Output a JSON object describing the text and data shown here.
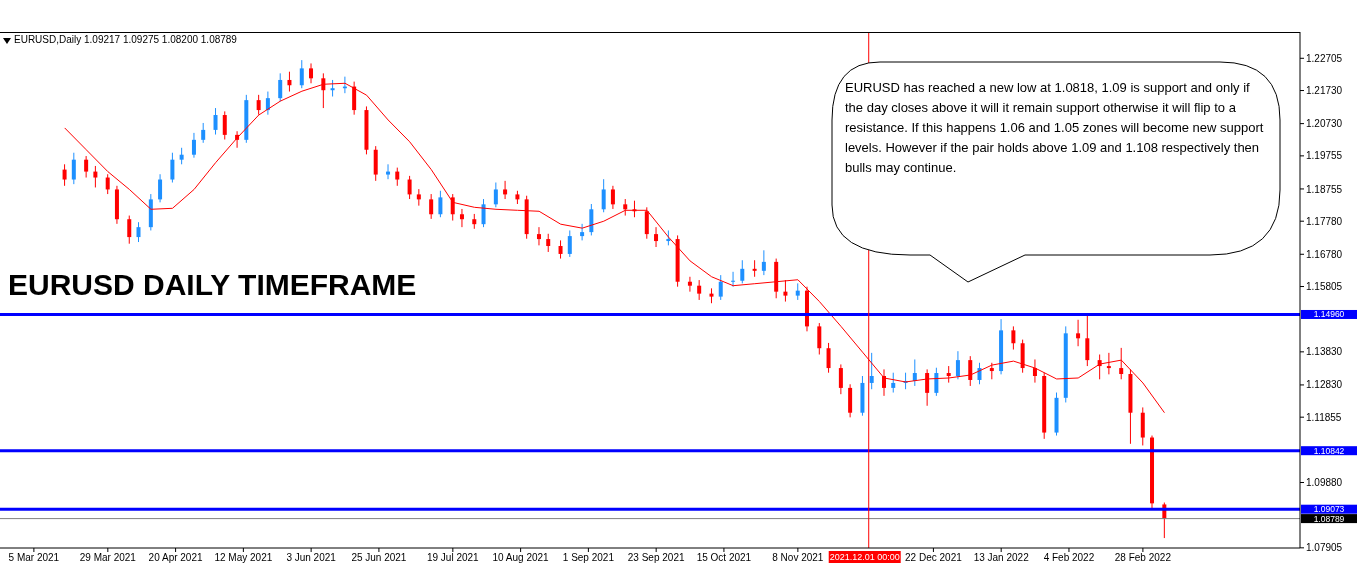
{
  "chart_data": {
    "type": "candlestick",
    "title": "EURUSD DAILY TIMEFRAME",
    "subtitle": "EURUSD,Daily 1.09217 1.09275 1.08200 1.08789",
    "annotations": [
      "EURUSD has reached a new low at 1.0818, 1.09 is support and only if the day closes above it will it remain support otherwise it will flip to a resistance. If this happens 1.06 and 1.05 zones will become new support levels. However if the pair holds above 1.09 and 1.108 respectively then bulls may continue."
    ],
    "x": [
      "2021-03-15",
      "2021-03-18",
      "2021-03-22",
      "2021-03-25",
      "2021-03-29",
      "2021-04-01",
      "2021-04-05",
      "2021-04-08",
      "2021-04-12",
      "2021-04-15",
      "2021-04-19",
      "2021-04-22",
      "2021-04-26",
      "2021-04-29",
      "2021-05-03",
      "2021-05-06",
      "2021-05-10",
      "2021-05-13",
      "2021-05-17",
      "2021-05-20",
      "2021-05-24",
      "2021-05-27",
      "2021-05-31",
      "2021-06-03",
      "2021-06-07",
      "2021-06-10",
      "2021-06-14",
      "2021-06-17",
      "2021-06-21",
      "2021-06-24",
      "2021-06-28",
      "2021-07-01",
      "2021-07-05",
      "2021-07-08",
      "2021-07-12",
      "2021-07-15",
      "2021-07-19",
      "2021-07-22",
      "2021-07-26",
      "2021-07-29",
      "2021-08-02",
      "2021-08-05",
      "2021-08-09",
      "2021-08-12",
      "2021-08-16",
      "2021-08-19",
      "2021-08-23",
      "2021-08-26",
      "2021-08-30",
      "2021-09-02",
      "2021-09-06",
      "2021-09-09",
      "2021-09-13",
      "2021-09-16",
      "2021-09-20",
      "2021-09-23",
      "2021-09-27",
      "2021-09-30",
      "2021-10-04",
      "2021-10-07",
      "2021-10-11",
      "2021-10-14",
      "2021-10-18",
      "2021-10-21",
      "2021-10-25",
      "2021-10-28",
      "2021-11-01",
      "2021-11-04",
      "2021-11-08",
      "2021-11-11",
      "2021-11-15",
      "2021-11-18",
      "2021-11-22",
      "2021-11-25",
      "2021-11-29",
      "2021-12-02",
      "2021-12-06",
      "2021-12-09",
      "2021-12-13",
      "2021-12-16",
      "2021-12-20",
      "2021-12-23",
      "2021-12-27",
      "2021-12-30",
      "2022-01-03",
      "2022-01-06",
      "2022-01-10",
      "2022-01-13",
      "2022-01-17",
      "2022-01-20",
      "2022-01-24",
      "2022-01-27",
      "2022-01-31",
      "2022-02-03",
      "2022-02-07",
      "2022-02-10",
      "2022-02-14",
      "2022-02-17",
      "2022-02-21",
      "2022-02-24",
      "2022-02-28",
      "2022-03-03",
      "2022-03-07"
    ],
    "ohlc": [
      [
        1.1934,
        1.195,
        1.1885,
        1.1904
      ],
      [
        1.1904,
        1.1985,
        1.189,
        1.1964
      ],
      [
        1.1964,
        1.1975,
        1.191,
        1.1928
      ],
      [
        1.1928,
        1.1945,
        1.188,
        1.191
      ],
      [
        1.191,
        1.192,
        1.186,
        1.1874
      ],
      [
        1.1874,
        1.1885,
        1.177,
        1.1784
      ],
      [
        1.1784,
        1.1795,
        1.171,
        1.173
      ],
      [
        1.173,
        1.1775,
        1.1715,
        1.176
      ],
      [
        1.176,
        1.186,
        1.175,
        1.1844
      ],
      [
        1.1844,
        1.192,
        1.1835,
        1.1904
      ],
      [
        1.1904,
        1.1985,
        1.1895,
        1.1964
      ],
      [
        1.1964,
        1.2,
        1.195,
        1.1979
      ],
      [
        1.1979,
        1.2045,
        1.197,
        1.2024
      ],
      [
        1.2024,
        1.2075,
        1.2015,
        1.2054
      ],
      [
        1.2054,
        1.212,
        1.204,
        1.2099
      ],
      [
        1.2099,
        1.211,
        1.2025,
        1.2039
      ],
      [
        1.2039,
        1.205,
        1.2,
        1.2024
      ],
      [
        1.2024,
        1.216,
        1.2015,
        1.2144
      ],
      [
        1.2144,
        1.216,
        1.21,
        1.2114
      ],
      [
        1.2114,
        1.217,
        1.21,
        1.215
      ],
      [
        1.215,
        1.2225,
        1.214,
        1.2205
      ],
      [
        1.2205,
        1.223,
        1.217,
        1.2189
      ],
      [
        1.2189,
        1.2265,
        1.218,
        1.224
      ],
      [
        1.224,
        1.2255,
        1.2195,
        1.221
      ],
      [
        1.221,
        1.2225,
        1.212,
        1.2174
      ],
      [
        1.2174,
        1.2205,
        1.2155,
        1.218
      ],
      [
        1.218,
        1.2215,
        1.2165,
        1.2185
      ],
      [
        1.2185,
        1.22,
        1.21,
        1.2114
      ],
      [
        1.2114,
        1.2125,
        1.198,
        1.1994
      ],
      [
        1.1994,
        1.2005,
        1.19,
        1.1919
      ],
      [
        1.1919,
        1.195,
        1.1905,
        1.1928
      ],
      [
        1.1928,
        1.194,
        1.1885,
        1.1904
      ],
      [
        1.1904,
        1.1915,
        1.1845,
        1.1859
      ],
      [
        1.1859,
        1.1875,
        1.1825,
        1.1844
      ],
      [
        1.1844,
        1.186,
        1.1785,
        1.1799
      ],
      [
        1.1799,
        1.187,
        1.179,
        1.185
      ],
      [
        1.185,
        1.186,
        1.178,
        1.1799
      ],
      [
        1.1799,
        1.1815,
        1.176,
        1.1784
      ],
      [
        1.1784,
        1.18,
        1.1755,
        1.1769
      ],
      [
        1.1769,
        1.1845,
        1.176,
        1.1829
      ],
      [
        1.1829,
        1.1895,
        1.182,
        1.1874
      ],
      [
        1.1874,
        1.19,
        1.1845,
        1.1859
      ],
      [
        1.1859,
        1.187,
        1.183,
        1.1844
      ],
      [
        1.1844,
        1.1855,
        1.1725,
        1.1739
      ],
      [
        1.1739,
        1.176,
        1.1705,
        1.1724
      ],
      [
        1.1724,
        1.174,
        1.1685,
        1.1703
      ],
      [
        1.1703,
        1.172,
        1.1665,
        1.1679
      ],
      [
        1.1679,
        1.175,
        1.167,
        1.1733
      ],
      [
        1.1733,
        1.177,
        1.172,
        1.1745
      ],
      [
        1.1745,
        1.183,
        1.1735,
        1.1814
      ],
      [
        1.1814,
        1.1905,
        1.1805,
        1.1874
      ],
      [
        1.1874,
        1.1885,
        1.1815,
        1.1829
      ],
      [
        1.1829,
        1.1845,
        1.1795,
        1.1814
      ],
      [
        1.1814,
        1.184,
        1.179,
        1.1808
      ],
      [
        1.1808,
        1.182,
        1.1725,
        1.1739
      ],
      [
        1.1739,
        1.176,
        1.17,
        1.1718
      ],
      [
        1.1718,
        1.175,
        1.1705,
        1.1724
      ],
      [
        1.1724,
        1.1735,
        1.158,
        1.1595
      ],
      [
        1.1595,
        1.161,
        1.1565,
        1.1583
      ],
      [
        1.1583,
        1.16,
        1.154,
        1.1559
      ],
      [
        1.1559,
        1.1575,
        1.153,
        1.155
      ],
      [
        1.155,
        1.1615,
        1.154,
        1.1595
      ],
      [
        1.1595,
        1.1625,
        1.158,
        1.1598
      ],
      [
        1.1598,
        1.166,
        1.159,
        1.1634
      ],
      [
        1.1634,
        1.166,
        1.161,
        1.1628
      ],
      [
        1.1628,
        1.169,
        1.1615,
        1.1655
      ],
      [
        1.1655,
        1.1665,
        1.1545,
        1.1565
      ],
      [
        1.1565,
        1.16,
        1.1535,
        1.1553
      ],
      [
        1.1553,
        1.159,
        1.154,
        1.1568
      ],
      [
        1.1568,
        1.158,
        1.1445,
        1.146
      ],
      [
        1.146,
        1.147,
        1.1375,
        1.1394
      ],
      [
        1.1394,
        1.141,
        1.132,
        1.1334
      ],
      [
        1.1334,
        1.1345,
        1.1255,
        1.1274
      ],
      [
        1.1274,
        1.1285,
        1.1185,
        1.1199
      ],
      [
        1.1199,
        1.131,
        1.119,
        1.1289
      ],
      [
        1.1289,
        1.138,
        1.127,
        1.131
      ],
      [
        1.131,
        1.133,
        1.125,
        1.1274
      ],
      [
        1.1274,
        1.132,
        1.126,
        1.1289
      ],
      [
        1.1289,
        1.132,
        1.127,
        1.1295
      ],
      [
        1.1295,
        1.136,
        1.128,
        1.1319
      ],
      [
        1.1319,
        1.133,
        1.122,
        1.1259
      ],
      [
        1.1259,
        1.1335,
        1.125,
        1.1319
      ],
      [
        1.1319,
        1.134,
        1.129,
        1.131
      ],
      [
        1.131,
        1.1385,
        1.13,
        1.1358
      ],
      [
        1.1358,
        1.137,
        1.128,
        1.1298
      ],
      [
        1.1298,
        1.135,
        1.1285,
        1.1334
      ],
      [
        1.1334,
        1.135,
        1.13,
        1.1325
      ],
      [
        1.1325,
        1.1482,
        1.1315,
        1.1448
      ],
      [
        1.1448,
        1.146,
        1.139,
        1.1409
      ],
      [
        1.1409,
        1.142,
        1.132,
        1.1334
      ],
      [
        1.1334,
        1.136,
        1.129,
        1.131
      ],
      [
        1.131,
        1.132,
        1.112,
        1.1139
      ],
      [
        1.1139,
        1.126,
        1.113,
        1.1244
      ],
      [
        1.1244,
        1.146,
        1.123,
        1.1439
      ],
      [
        1.1439,
        1.148,
        1.14,
        1.1424
      ],
      [
        1.1424,
        1.1495,
        1.134,
        1.1358
      ],
      [
        1.1358,
        1.1375,
        1.13,
        1.134
      ],
      [
        1.134,
        1.138,
        1.1315,
        1.1334
      ],
      [
        1.1334,
        1.1395,
        1.13,
        1.1316
      ],
      [
        1.1316,
        1.133,
        1.1105,
        1.1199
      ],
      [
        1.1199,
        1.1215,
        1.11,
        1.1124
      ],
      [
        1.1124,
        1.113,
        1.091,
        1.0925
      ],
      [
        1.09217,
        1.09275,
        1.082,
        1.08789
      ]
    ],
    "colors": [
      "#ff0000",
      "#1e90ff",
      "#ff0000",
      "#ff0000",
      "#ff0000",
      "#ff0000",
      "#ff0000",
      "#1e90ff",
      "#1e90ff",
      "#1e90ff",
      "#1e90ff",
      "#1e90ff",
      "#1e90ff",
      "#1e90ff",
      "#1e90ff",
      "#ff0000",
      "#ff0000",
      "#1e90ff",
      "#ff0000",
      "#1e90ff",
      "#1e90ff",
      "#ff0000",
      "#1e90ff",
      "#ff0000",
      "#ff0000",
      "#1e90ff",
      "#1e90ff",
      "#ff0000",
      "#ff0000",
      "#ff0000",
      "#1e90ff",
      "#ff0000",
      "#ff0000",
      "#ff0000",
      "#ff0000",
      "#1e90ff",
      "#ff0000",
      "#ff0000",
      "#ff0000",
      "#1e90ff",
      "#1e90ff",
      "#ff0000",
      "#ff0000",
      "#ff0000",
      "#ff0000",
      "#ff0000",
      "#ff0000",
      "#1e90ff",
      "#1e90ff",
      "#1e90ff",
      "#1e90ff",
      "#ff0000",
      "#ff0000",
      "#ff0000",
      "#ff0000",
      "#ff0000",
      "#1e90ff",
      "#ff0000",
      "#ff0000",
      "#ff0000",
      "#ff0000",
      "#1e90ff",
      "#1e90ff",
      "#1e90ff",
      "#ff0000",
      "#1e90ff",
      "#ff0000",
      "#ff0000",
      "#1e90ff",
      "#ff0000",
      "#ff0000",
      "#ff0000",
      "#ff0000",
      "#ff0000",
      "#1e90ff",
      "#1e90ff",
      "#ff0000",
      "#1e90ff",
      "#1e90ff",
      "#1e90ff",
      "#ff0000",
      "#1e90ff",
      "#ff0000",
      "#1e90ff",
      "#ff0000",
      "#1e90ff",
      "#ff0000",
      "#1e90ff",
      "#ff0000",
      "#ff0000",
      "#ff0000",
      "#ff0000",
      "#1e90ff",
      "#1e90ff",
      "#ff0000",
      "#ff0000",
      "#ff0000",
      "#ff0000",
      "#ff0000",
      "#ff0000",
      "#ff0000",
      "#ff0000",
      "#ff0000"
    ],
    "series": [
      {
        "type": "line",
        "color": "#ff0000",
        "x": [
          "2021-03-15",
          "2021-03-22",
          "2021-03-29",
          "2021-04-05",
          "2021-04-12",
          "2021-04-19",
          "2021-04-26",
          "2021-05-03",
          "2021-05-10",
          "2021-05-17",
          "2021-05-24",
          "2021-05-31",
          "2021-06-07",
          "2021-06-14",
          "2021-06-21",
          "2021-06-28",
          "2021-07-05",
          "2021-07-12",
          "2021-07-19",
          "2021-07-26",
          "2021-08-02",
          "2021-08-09",
          "2021-08-16",
          "2021-08-23",
          "2021-08-30",
          "2021-09-06",
          "2021-09-13",
          "2021-09-20",
          "2021-09-27",
          "2021-10-04",
          "2021-10-11",
          "2021-10-18",
          "2021-10-25",
          "2021-11-01",
          "2021-11-08",
          "2021-11-15",
          "2021-11-22",
          "2021-11-29",
          "2021-12-06",
          "2021-12-13",
          "2021-12-20",
          "2021-12-27",
          "2022-01-03",
          "2022-01-10",
          "2022-01-17",
          "2022-01-24",
          "2022-01-31",
          "2022-02-07",
          "2022-02-14",
          "2022-02-21",
          "2022-02-28",
          "2022-03-07"
        ],
        "values": [
          1.206,
          1.1994,
          1.1928,
          1.1874,
          1.1814,
          1.1817,
          1.1874,
          1.1955,
          1.203,
          1.2099,
          1.2141,
          1.2171,
          1.2192,
          1.2195,
          1.2159,
          1.2084,
          1.2018,
          1.1934,
          1.1835,
          1.182,
          1.1814,
          1.1811,
          1.1808,
          1.1769,
          1.1757,
          1.1778,
          1.1811,
          1.1811,
          1.173,
          1.1658,
          1.161,
          1.1583,
          1.1589,
          1.1595,
          1.1601,
          1.1535,
          1.146,
          1.1382,
          1.1304,
          1.1292,
          1.1301,
          1.1304,
          1.1313,
          1.1343,
          1.1355,
          1.1334,
          1.1301,
          1.1304,
          1.1346,
          1.1358,
          1.1289,
          1.1199
        ]
      }
    ],
    "xlim": [
      "2021-02-22",
      "2022-04-20"
    ],
    "xticks": [
      {
        "value": "2021-03-05",
        "label": "5 Mar 2021"
      },
      {
        "value": "2021-03-29",
        "label": "29 Mar 2021"
      },
      {
        "value": "2021-04-20",
        "label": "20 Apr 2021"
      },
      {
        "value": "2021-05-12",
        "label": "12 May 2021"
      },
      {
        "value": "2021-06-03",
        "label": "3 Jun 2021"
      },
      {
        "value": "2021-06-25",
        "label": "25 Jun 2021"
      },
      {
        "value": "2021-07-19",
        "label": "19 Jul 2021"
      },
      {
        "value": "2021-08-10",
        "label": "10 Aug 2021"
      },
      {
        "value": "2021-09-01",
        "label": "1 Sep 2021"
      },
      {
        "value": "2021-09-23",
        "label": "23 Sep 2021"
      },
      {
        "value": "2021-10-15",
        "label": "15 Oct 2021"
      },
      {
        "value": "2021-11-08",
        "label": "8 Nov 2021"
      },
      {
        "value": "2021-12-22",
        "label": "22 Dec 2021"
      },
      {
        "value": "2022-01-13",
        "label": "13 Jan 2022"
      },
      {
        "value": "2022-02-04",
        "label": "4 Feb 2022"
      },
      {
        "value": "2022-02-28",
        "label": "28 Feb 2022"
      }
    ],
    "ylim": [
      1.079,
      1.235
    ],
    "yticks": [
      1.22705,
      {
        "value": 1.2173,
        "label": "1.21730"
      },
      {
        "value": 1.2073,
        "label": "1.20730"
      },
      1.19755,
      1.18755,
      {
        "value": 1.1778,
        "label": "1.17780"
      },
      {
        "value": 1.1678,
        "label": "1.16780"
      },
      1.15805,
      {
        "value": 1.1383,
        "label": "1.13830"
      },
      {
        "value": 1.1283,
        "label": "1.12830"
      },
      1.11855,
      {
        "value": 1.0988,
        "label": "1.09880"
      },
      1.07905
    ],
    "ref_lines": [
      {
        "axis": "y",
        "value": 1.1496,
        "label": "1.14960",
        "color": "#0000ff"
      },
      {
        "axis": "y",
        "value": 1.10842,
        "label": "1.10842",
        "color": "#0000ff"
      },
      {
        "axis": "y",
        "value": 1.09073,
        "label": "1.09073",
        "color": "#0000ff"
      },
      {
        "axis": "y",
        "value": 1.08789,
        "label": "1.08789",
        "color": "#808080"
      },
      {
        "axis": "x",
        "value": "2021-12-01",
        "label": "2021.12.01 00:00",
        "color": "#ff0000"
      }
    ],
    "grid": false
  }
}
